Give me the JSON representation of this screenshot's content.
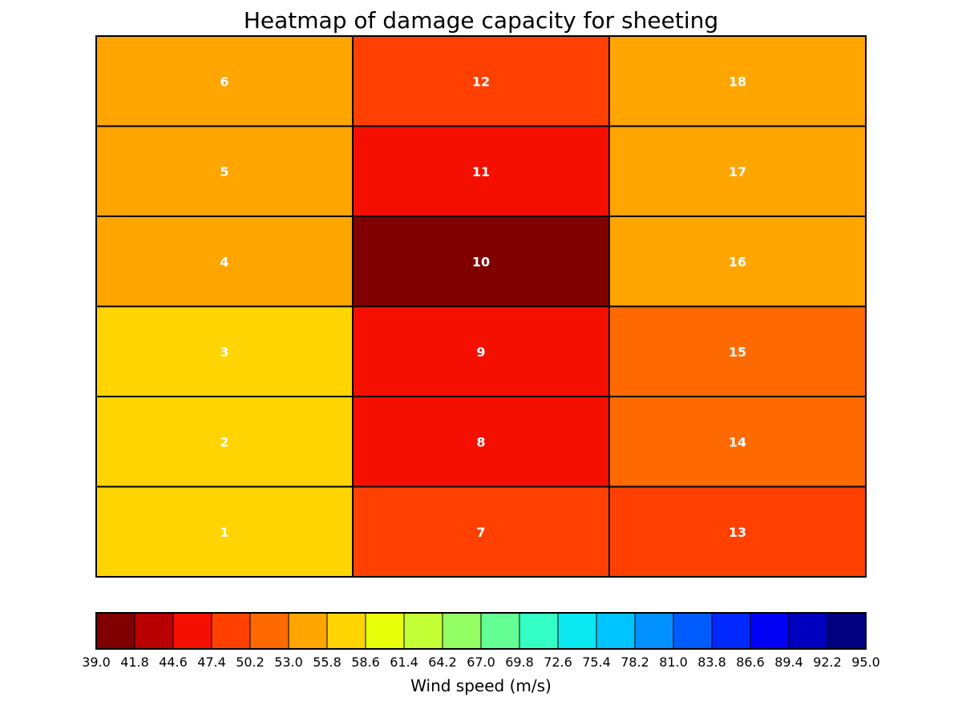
{
  "chart_data": {
    "type": "heatmap",
    "title": "Heatmap of damage capacity for sheeting",
    "columns": 3,
    "rows": 6,
    "cells": [
      {
        "label": "1",
        "col": 0,
        "row": 0,
        "color": "#ffd400"
      },
      {
        "label": "2",
        "col": 0,
        "row": 1,
        "color": "#ffd400"
      },
      {
        "label": "3",
        "col": 0,
        "row": 2,
        "color": "#ffd400"
      },
      {
        "label": "4",
        "col": 0,
        "row": 3,
        "color": "#ffa500"
      },
      {
        "label": "5",
        "col": 0,
        "row": 4,
        "color": "#ffa500"
      },
      {
        "label": "6",
        "col": 0,
        "row": 5,
        "color": "#ffa500"
      },
      {
        "label": "7",
        "col": 1,
        "row": 0,
        "color": "#ff4000"
      },
      {
        "label": "8",
        "col": 1,
        "row": 1,
        "color": "#f50f00"
      },
      {
        "label": "9",
        "col": 1,
        "row": 2,
        "color": "#f50f00"
      },
      {
        "label": "10",
        "col": 1,
        "row": 3,
        "color": "#800000"
      },
      {
        "label": "11",
        "col": 1,
        "row": 4,
        "color": "#f50f00"
      },
      {
        "label": "12",
        "col": 1,
        "row": 5,
        "color": "#ff4000"
      },
      {
        "label": "13",
        "col": 2,
        "row": 0,
        "color": "#ff4000"
      },
      {
        "label": "14",
        "col": 2,
        "row": 1,
        "color": "#ff6a00"
      },
      {
        "label": "15",
        "col": 2,
        "row": 2,
        "color": "#ff6a00"
      },
      {
        "label": "16",
        "col": 2,
        "row": 3,
        "color": "#ffa500"
      },
      {
        "label": "17",
        "col": 2,
        "row": 4,
        "color": "#ffa500"
      },
      {
        "label": "18",
        "col": 2,
        "row": 5,
        "color": "#ffa500"
      }
    ],
    "colorbar": {
      "label": "Wind speed (m/s)",
      "ticks": [
        "39.0",
        "41.8",
        "44.6",
        "47.4",
        "50.2",
        "53.0",
        "55.8",
        "58.6",
        "61.4",
        "64.2",
        "67.0",
        "69.8",
        "72.6",
        "75.4",
        "78.2",
        "81.0",
        "83.8",
        "86.6",
        "89.4",
        "92.2",
        "95.0"
      ],
      "colors": [
        "#800000",
        "#b80000",
        "#f50f00",
        "#ff4000",
        "#ff6a00",
        "#ffa500",
        "#ffd400",
        "#e8ff0a",
        "#c2ff34",
        "#94ff64",
        "#64ff94",
        "#34ffc4",
        "#0ae8f2",
        "#00c4ff",
        "#0090ff",
        "#005cff",
        "#0028ff",
        "#0000f5",
        "#0000c0",
        "#000080"
      ]
    }
  }
}
